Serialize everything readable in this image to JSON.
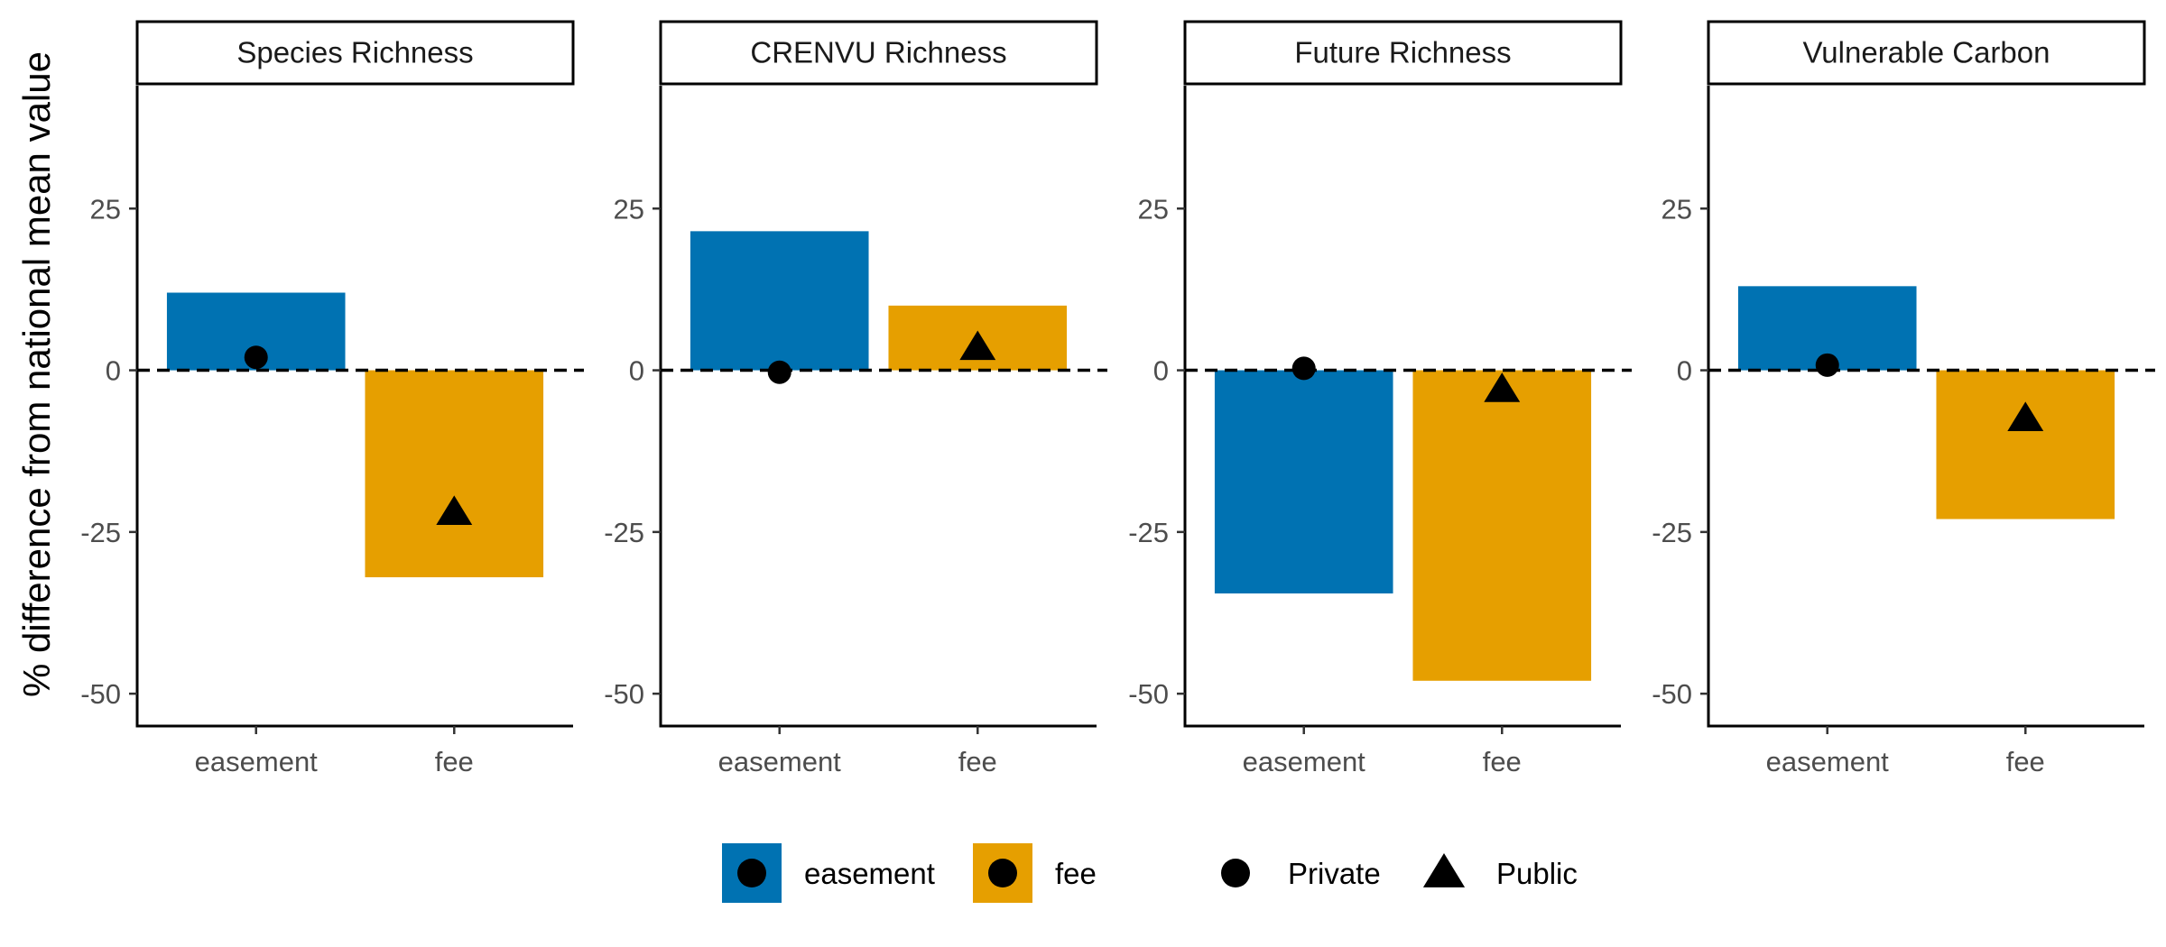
{
  "chart_data": {
    "type": "bar",
    "ylabel": "% difference from national mean value",
    "xlabel": "",
    "ylim": [
      -55,
      44
    ],
    "yticks": [
      -50,
      -25,
      0,
      25
    ],
    "categories": [
      "easement",
      "fee"
    ],
    "reference_line": 0,
    "panels": [
      {
        "title": "Species Richness",
        "bars": [
          {
            "category": "easement",
            "value": 12
          },
          {
            "category": "fee",
            "value": -32
          }
        ],
        "points": [
          {
            "category": "easement",
            "series": "Private",
            "value": 2
          },
          {
            "category": "fee",
            "series": "Public",
            "value": -22
          }
        ]
      },
      {
        "title": "CRENVU Richness",
        "bars": [
          {
            "category": "easement",
            "value": 21.5
          },
          {
            "category": "fee",
            "value": 10
          }
        ],
        "points": [
          {
            "category": "easement",
            "series": "Private",
            "value": -0.3
          },
          {
            "category": "fee",
            "series": "Public",
            "value": 3.5
          }
        ]
      },
      {
        "title": "Future Richness",
        "bars": [
          {
            "category": "easement",
            "value": -34.5
          },
          {
            "category": "fee",
            "value": -48
          }
        ],
        "points": [
          {
            "category": "easement",
            "series": "Private",
            "value": 0.3
          },
          {
            "category": "fee",
            "series": "Public",
            "value": -3
          }
        ]
      },
      {
        "title": "Vulnerable Carbon",
        "bars": [
          {
            "category": "easement",
            "value": 13
          },
          {
            "category": "fee",
            "value": -23
          }
        ],
        "points": [
          {
            "category": "easement",
            "series": "Private",
            "value": 0.8
          },
          {
            "category": "fee",
            "series": "Public",
            "value": -7.5
          }
        ]
      }
    ],
    "fill_legend": [
      {
        "label": "easement",
        "color": "#0072B2"
      },
      {
        "label": "fee",
        "color": "#E69F00"
      }
    ],
    "shape_legend": [
      {
        "label": "Private",
        "shape": "circle"
      },
      {
        "label": "Public",
        "shape": "triangle"
      }
    ],
    "legend_position": "bottom"
  }
}
